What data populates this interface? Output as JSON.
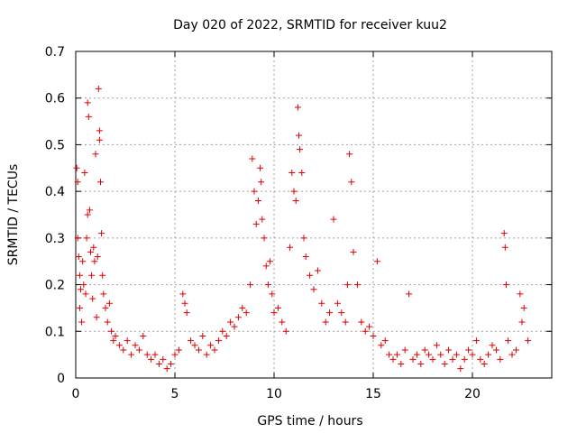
{
  "chart_data": {
    "type": "scatter",
    "title": "Day 020 of 2022, SRMTID for receiver kuu2",
    "xlabel": "GPS time / hours",
    "ylabel": "SRMTID / TECUs",
    "xlim": [
      0,
      24
    ],
    "ylim": [
      0,
      0.7
    ],
    "xticks": [
      0,
      5,
      10,
      15,
      20
    ],
    "xtick_labels": [
      "0",
      "5",
      "10",
      "15",
      "20"
    ],
    "yticks": [
      0,
      0.1,
      0.2,
      0.3,
      0.4,
      0.5,
      0.6,
      0.7
    ],
    "ytick_labels": [
      "0",
      "0.1",
      "0.2",
      "0.3",
      "0.4",
      "0.5",
      "0.6",
      "0.7"
    ],
    "grid": true,
    "marker": "plus",
    "color": "#e00000",
    "series": [
      {
        "name": "SRMTID",
        "points": [
          [
            0.05,
            0.45
          ],
          [
            0.1,
            0.42
          ],
          [
            0.1,
            0.3
          ],
          [
            0.15,
            0.26
          ],
          [
            0.2,
            0.22
          ],
          [
            0.2,
            0.15
          ],
          [
            0.25,
            0.19
          ],
          [
            0.3,
            0.12
          ],
          [
            0.35,
            0.25
          ],
          [
            0.4,
            0.2
          ],
          [
            0.45,
            0.44
          ],
          [
            0.5,
            0.18
          ],
          [
            0.55,
            0.3
          ],
          [
            0.6,
            0.35
          ],
          [
            0.6,
            0.59
          ],
          [
            0.65,
            0.56
          ],
          [
            0.7,
            0.36
          ],
          [
            0.75,
            0.27
          ],
          [
            0.8,
            0.22
          ],
          [
            0.85,
            0.17
          ],
          [
            0.9,
            0.28
          ],
          [
            0.95,
            0.25
          ],
          [
            1.0,
            0.48
          ],
          [
            1.05,
            0.13
          ],
          [
            1.1,
            0.26
          ],
          [
            1.15,
            0.62
          ],
          [
            1.2,
            0.53
          ],
          [
            1.2,
            0.51
          ],
          [
            1.25,
            0.42
          ],
          [
            1.3,
            0.31
          ],
          [
            1.35,
            0.22
          ],
          [
            1.4,
            0.18
          ],
          [
            1.5,
            0.15
          ],
          [
            1.6,
            0.12
          ],
          [
            1.7,
            0.16
          ],
          [
            1.8,
            0.1
          ],
          [
            1.9,
            0.08
          ],
          [
            2.0,
            0.09
          ],
          [
            2.2,
            0.07
          ],
          [
            2.4,
            0.06
          ],
          [
            2.6,
            0.08
          ],
          [
            2.8,
            0.05
          ],
          [
            3.0,
            0.07
          ],
          [
            3.2,
            0.06
          ],
          [
            3.4,
            0.09
          ],
          [
            3.6,
            0.05
          ],
          [
            3.8,
            0.04
          ],
          [
            4.0,
            0.05
          ],
          [
            4.2,
            0.03
          ],
          [
            4.4,
            0.04
          ],
          [
            4.6,
            0.02
          ],
          [
            4.8,
            0.03
          ],
          [
            5.0,
            0.05
          ],
          [
            5.2,
            0.06
          ],
          [
            5.4,
            0.18
          ],
          [
            5.5,
            0.16
          ],
          [
            5.6,
            0.14
          ],
          [
            5.8,
            0.08
          ],
          [
            6.0,
            0.07
          ],
          [
            6.2,
            0.06
          ],
          [
            6.4,
            0.09
          ],
          [
            6.6,
            0.05
          ],
          [
            6.8,
            0.07
          ],
          [
            7.0,
            0.06
          ],
          [
            7.2,
            0.08
          ],
          [
            7.4,
            0.1
          ],
          [
            7.6,
            0.09
          ],
          [
            7.8,
            0.12
          ],
          [
            8.0,
            0.11
          ],
          [
            8.2,
            0.13
          ],
          [
            8.4,
            0.15
          ],
          [
            8.6,
            0.14
          ],
          [
            8.8,
            0.2
          ],
          [
            8.9,
            0.47
          ],
          [
            9.0,
            0.4
          ],
          [
            9.1,
            0.33
          ],
          [
            9.2,
            0.38
          ],
          [
            9.3,
            0.45
          ],
          [
            9.35,
            0.42
          ],
          [
            9.4,
            0.34
          ],
          [
            9.5,
            0.3
          ],
          [
            9.6,
            0.24
          ],
          [
            9.7,
            0.2
          ],
          [
            9.8,
            0.25
          ],
          [
            9.9,
            0.18
          ],
          [
            10.0,
            0.14
          ],
          [
            10.2,
            0.15
          ],
          [
            10.4,
            0.12
          ],
          [
            10.6,
            0.1
          ],
          [
            10.8,
            0.28
          ],
          [
            10.9,
            0.44
          ],
          [
            11.0,
            0.4
          ],
          [
            11.1,
            0.38
          ],
          [
            11.2,
            0.58
          ],
          [
            11.25,
            0.52
          ],
          [
            11.3,
            0.49
          ],
          [
            11.4,
            0.44
          ],
          [
            11.5,
            0.3
          ],
          [
            11.6,
            0.26
          ],
          [
            11.8,
            0.22
          ],
          [
            12.0,
            0.19
          ],
          [
            12.2,
            0.23
          ],
          [
            12.4,
            0.16
          ],
          [
            12.6,
            0.12
          ],
          [
            12.8,
            0.14
          ],
          [
            13.0,
            0.34
          ],
          [
            13.2,
            0.16
          ],
          [
            13.4,
            0.14
          ],
          [
            13.6,
            0.12
          ],
          [
            13.7,
            0.2
          ],
          [
            13.8,
            0.48
          ],
          [
            13.9,
            0.42
          ],
          [
            14.0,
            0.27
          ],
          [
            14.2,
            0.2
          ],
          [
            14.4,
            0.12
          ],
          [
            14.6,
            0.1
          ],
          [
            14.8,
            0.11
          ],
          [
            15.0,
            0.09
          ],
          [
            15.2,
            0.25
          ],
          [
            15.4,
            0.07
          ],
          [
            15.6,
            0.08
          ],
          [
            15.8,
            0.05
          ],
          [
            16.0,
            0.04
          ],
          [
            16.2,
            0.05
          ],
          [
            16.4,
            0.03
          ],
          [
            16.6,
            0.06
          ],
          [
            16.8,
            0.18
          ],
          [
            17.0,
            0.04
          ],
          [
            17.2,
            0.05
          ],
          [
            17.4,
            0.03
          ],
          [
            17.6,
            0.06
          ],
          [
            17.8,
            0.05
          ],
          [
            18.0,
            0.04
          ],
          [
            18.2,
            0.07
          ],
          [
            18.4,
            0.05
          ],
          [
            18.6,
            0.03
          ],
          [
            18.8,
            0.06
          ],
          [
            19.0,
            0.04
          ],
          [
            19.2,
            0.05
          ],
          [
            19.4,
            0.02
          ],
          [
            19.6,
            0.04
          ],
          [
            19.8,
            0.06
          ],
          [
            20.0,
            0.05
          ],
          [
            20.2,
            0.08
          ],
          [
            20.4,
            0.04
          ],
          [
            20.6,
            0.03
          ],
          [
            20.8,
            0.05
          ],
          [
            21.0,
            0.07
          ],
          [
            21.2,
            0.06
          ],
          [
            21.4,
            0.04
          ],
          [
            21.6,
            0.31
          ],
          [
            21.65,
            0.28
          ],
          [
            21.7,
            0.2
          ],
          [
            21.8,
            0.08
          ],
          [
            22.0,
            0.05
          ],
          [
            22.2,
            0.06
          ],
          [
            22.4,
            0.18
          ],
          [
            22.5,
            0.12
          ],
          [
            22.6,
            0.15
          ],
          [
            22.8,
            0.08
          ]
        ]
      }
    ]
  }
}
